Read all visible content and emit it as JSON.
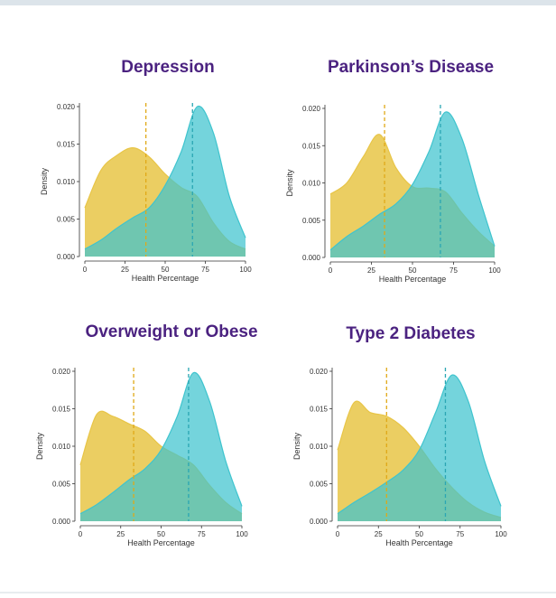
{
  "chart_data": [
    {
      "type": "area",
      "title": "Depression",
      "xlabel": "Health Percentage",
      "ylabel": "Density",
      "xlim": [
        0,
        100
      ],
      "ylim": [
        0,
        0.02
      ],
      "x_ticks": [
        "0",
        "25",
        "50",
        "75",
        "100"
      ],
      "y_ticks": [
        "0.000",
        "0.005",
        "0.010",
        "0.015",
        "0.020"
      ],
      "grid": false,
      "legend": "none",
      "x": [
        0,
        10,
        20,
        30,
        40,
        50,
        60,
        70,
        80,
        90,
        100
      ],
      "series": [
        {
          "color": "#e8c547",
          "values": [
            0.0065,
            0.0115,
            0.0135,
            0.0145,
            0.0133,
            0.011,
            0.0092,
            0.008,
            0.0045,
            0.002,
            0.001
          ],
          "mean": 38
        },
        {
          "color": "#3fc4ce",
          "values": [
            0.001,
            0.0022,
            0.0038,
            0.0052,
            0.0065,
            0.0095,
            0.014,
            0.02,
            0.0165,
            0.008,
            0.0025
          ],
          "mean": 67
        }
      ]
    },
    {
      "type": "area",
      "title": "Parkinson’s Disease",
      "xlabel": "Health Percentage",
      "ylabel": "Density",
      "xlim": [
        0,
        100
      ],
      "ylim": [
        0,
        0.02
      ],
      "x_ticks": [
        "0",
        "25",
        "50",
        "75",
        "100"
      ],
      "y_ticks": [
        "0.000",
        "0.005",
        "0.010",
        "0.015",
        "0.020"
      ],
      "grid": false,
      "legend": "none",
      "x": [
        0,
        10,
        20,
        30,
        40,
        50,
        60,
        70,
        80,
        90,
        100
      ],
      "series": [
        {
          "color": "#e8c547",
          "values": [
            0.0085,
            0.01,
            0.0135,
            0.0165,
            0.012,
            0.0095,
            0.0093,
            0.0088,
            0.006,
            0.0035,
            0.0015
          ],
          "mean": 33
        },
        {
          "color": "#3fc4ce",
          "values": [
            0.001,
            0.0028,
            0.0042,
            0.0058,
            0.0072,
            0.0098,
            0.0142,
            0.0195,
            0.016,
            0.0085,
            0.0015
          ],
          "mean": 67
        }
      ]
    },
    {
      "type": "area",
      "title": "Overweight or Obese",
      "xlabel": "Health Percentage",
      "ylabel": "Density",
      "xlim": [
        0,
        100
      ],
      "ylim": [
        0,
        0.02
      ],
      "x_ticks": [
        "0",
        "25",
        "50",
        "75",
        "100"
      ],
      "y_ticks": [
        "0.000",
        "0.005",
        "0.010",
        "0.015",
        "0.020"
      ],
      "grid": false,
      "legend": "none",
      "x": [
        0,
        10,
        20,
        30,
        40,
        50,
        60,
        70,
        80,
        90,
        100
      ],
      "series": [
        {
          "color": "#e8c547",
          "values": [
            0.0075,
            0.0142,
            0.014,
            0.013,
            0.012,
            0.01,
            0.0088,
            0.0075,
            0.0048,
            0.0025,
            0.001
          ],
          "mean": 33
        },
        {
          "color": "#3fc4ce",
          "values": [
            0.001,
            0.0022,
            0.0038,
            0.0055,
            0.007,
            0.0095,
            0.014,
            0.0198,
            0.016,
            0.008,
            0.002
          ],
          "mean": 67
        }
      ]
    },
    {
      "type": "area",
      "title": "Type 2 Diabetes",
      "xlabel": "Health Percentage",
      "ylabel": "Density",
      "xlim": [
        0,
        100
      ],
      "ylim": [
        0,
        0.02
      ],
      "x_ticks": [
        "0",
        "25",
        "50",
        "75",
        "100"
      ],
      "y_ticks": [
        "0.000",
        "0.005",
        "0.010",
        "0.015",
        "0.020"
      ],
      "grid": false,
      "legend": "none",
      "x": [
        0,
        10,
        20,
        30,
        40,
        50,
        60,
        70,
        80,
        90,
        100
      ],
      "series": [
        {
          "color": "#e8c547",
          "values": [
            0.0095,
            0.0158,
            0.0145,
            0.014,
            0.0125,
            0.01,
            0.007,
            0.0045,
            0.0025,
            0.0012,
            0.0005
          ],
          "mean": 30
        },
        {
          "color": "#3fc4ce",
          "values": [
            0.001,
            0.0025,
            0.0038,
            0.0052,
            0.0068,
            0.0095,
            0.0145,
            0.0195,
            0.016,
            0.008,
            0.002
          ],
          "mean": 66
        }
      ]
    }
  ]
}
